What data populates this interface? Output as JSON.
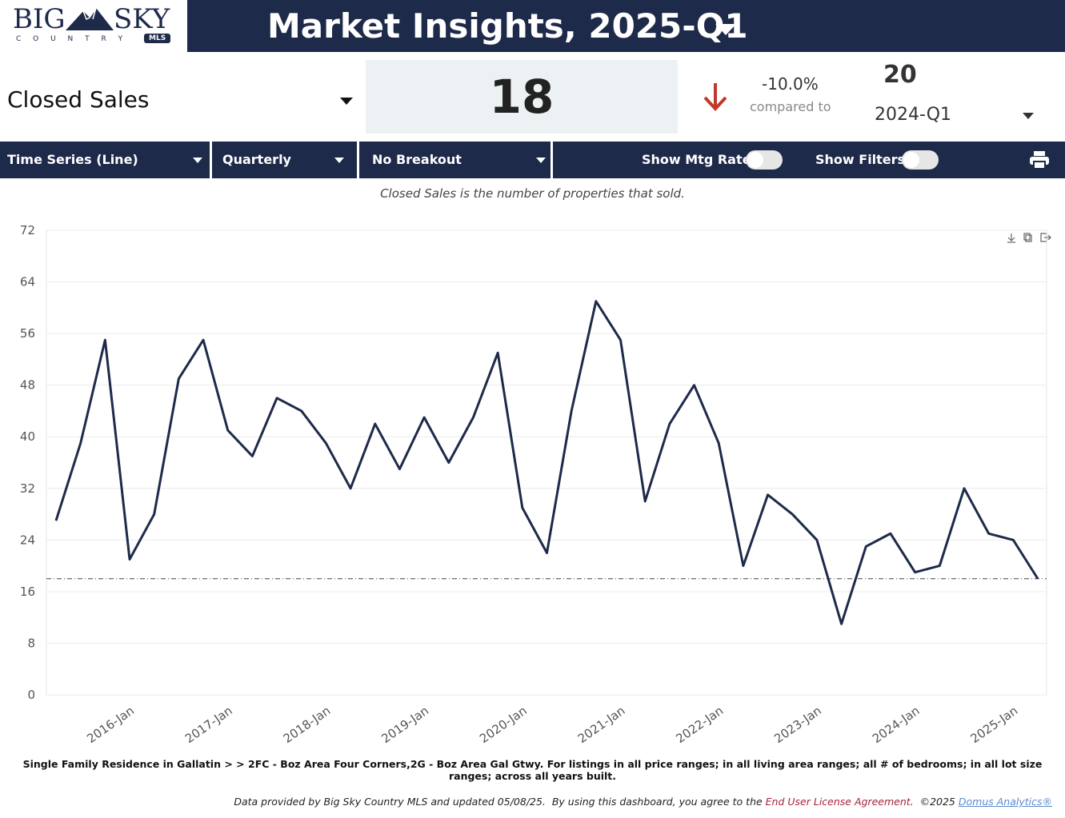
{
  "logo": {
    "big": "BIG",
    "sky": "SKY",
    "country": "C O U N T R Y",
    "mls": "MLS"
  },
  "header": {
    "title": "Market Insights, 2025-Q1"
  },
  "metric": {
    "name": "Closed Sales",
    "value": "18",
    "change": "-10.0%",
    "compared_label": "compared to",
    "compare_value": "20",
    "compare_period": "2024-Q1"
  },
  "toolbar": {
    "chart_type": "Time Series (Line)",
    "interval": "Quarterly",
    "breakout": "No Breakout",
    "mtg_rate": "Show Mtg Rate:",
    "filters": "Show Filters:"
  },
  "description": "Closed Sales is the number of properties that sold.",
  "chart_data": {
    "type": "line",
    "categories": [
      null,
      null,
      null,
      null,
      "2016-Jan",
      null,
      null,
      null,
      "2017-Jan",
      null,
      null,
      null,
      "2018-Jan",
      null,
      null,
      null,
      "2019-Jan",
      null,
      null,
      null,
      "2020-Jan",
      null,
      null,
      null,
      "2021-Jan",
      null,
      null,
      null,
      "2022-Jan",
      null,
      null,
      null,
      "2023-Jan",
      null,
      null,
      null,
      "2024-Jan",
      null,
      null,
      null,
      "2025-Jan"
    ],
    "series": [
      {
        "name": "Closed Sales",
        "color": "#1e2a4a",
        "values": [
          27,
          39,
          55,
          21,
          28,
          49,
          55,
          41,
          37,
          46,
          44,
          39,
          32,
          42,
          35,
          43,
          36,
          43,
          53,
          29,
          22,
          44,
          61,
          55,
          30,
          42,
          48,
          39,
          20,
          31,
          28,
          24,
          11,
          23,
          25,
          19,
          20,
          32,
          25,
          24,
          18
        ]
      }
    ],
    "reference_line": 18,
    "ylim": [
      0,
      72
    ],
    "yticks": [
      0,
      8,
      16,
      24,
      32,
      40,
      48,
      56,
      64,
      72
    ],
    "grid": true
  },
  "filter_text": "Single Family Residence in Gallatin > > 2FC - Boz Area Four Corners,2G - Boz Area Gal Gtwy. For listings in all price ranges; in all living area ranges; all # of bedrooms; in all lot size ranges; across all years built.",
  "footer": {
    "text": "Data provided by Big Sky Country MLS and updated 05/08/25.  By using this dashboard, you agree to the ",
    "eula": "End User License Agreement",
    "copyright": ".  ©2025 ",
    "domus": "Domus Analytics®"
  }
}
